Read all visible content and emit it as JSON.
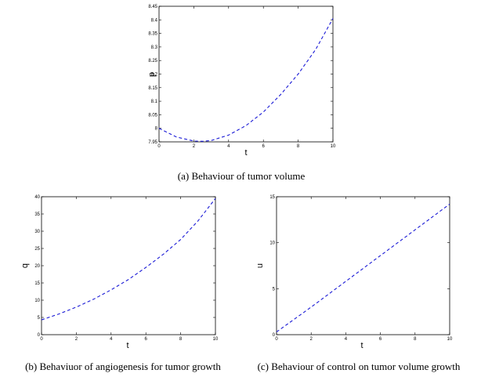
{
  "chart_data": [
    {
      "type": "line",
      "caption": "(a) Behaviour of tumor volume",
      "xlabel": "t",
      "ylabel": "p",
      "xlim": [
        0,
        10
      ],
      "ylim": [
        7.95,
        8.45
      ],
      "xticks": [
        "0",
        "2",
        "4",
        "6",
        "8",
        "10"
      ],
      "yticks": [
        "7.95",
        "8",
        "8.05",
        "8.1",
        "8.15",
        "8.2",
        "8.25",
        "8.3",
        "8.35",
        "8.4",
        "8.45"
      ],
      "series": [
        {
          "color": "#1a1ad6",
          "style": "dashed",
          "x": [
            0,
            1,
            2,
            2.5,
            3,
            4,
            5,
            6,
            7,
            8,
            9,
            10
          ],
          "y": [
            8.0,
            7.968,
            7.953,
            7.952,
            7.955,
            7.975,
            8.01,
            8.06,
            8.125,
            8.2,
            8.29,
            8.405
          ]
        }
      ]
    },
    {
      "type": "line",
      "caption": "(b) Behaviuor of angiogenesis for tumor growth",
      "xlabel": "t",
      "ylabel": "q",
      "xlim": [
        0,
        10
      ],
      "ylim": [
        0,
        40
      ],
      "xticks": [
        "0",
        "2",
        "4",
        "6",
        "8",
        "10"
      ],
      "yticks": [
        "0",
        "5",
        "10",
        "15",
        "20",
        "25",
        "30",
        "35",
        "40"
      ],
      "series": [
        {
          "color": "#1a1ad6",
          "style": "dashed",
          "x": [
            0,
            1,
            2,
            3,
            4,
            5,
            6,
            7,
            8,
            9,
            10
          ],
          "y": [
            4.3,
            6.0,
            8.0,
            10.3,
            13.0,
            16.0,
            19.5,
            23.3,
            27.6,
            33.0,
            39.5
          ]
        }
      ]
    },
    {
      "type": "line",
      "caption": "(c) Behaviour of control on tumor volume growth",
      "xlabel": "t",
      "ylabel": "u",
      "xlim": [
        0,
        10
      ],
      "ylim": [
        0,
        15
      ],
      "xticks": [
        "0",
        "2",
        "4",
        "6",
        "8",
        "10"
      ],
      "yticks": [
        "0",
        "5",
        "10",
        "15"
      ],
      "series": [
        {
          "color": "#1a1ad6",
          "style": "dashed",
          "x": [
            0,
            2,
            4,
            6,
            8,
            10
          ],
          "y": [
            0.3,
            3.0,
            5.8,
            8.6,
            11.4,
            14.2
          ]
        }
      ]
    }
  ]
}
